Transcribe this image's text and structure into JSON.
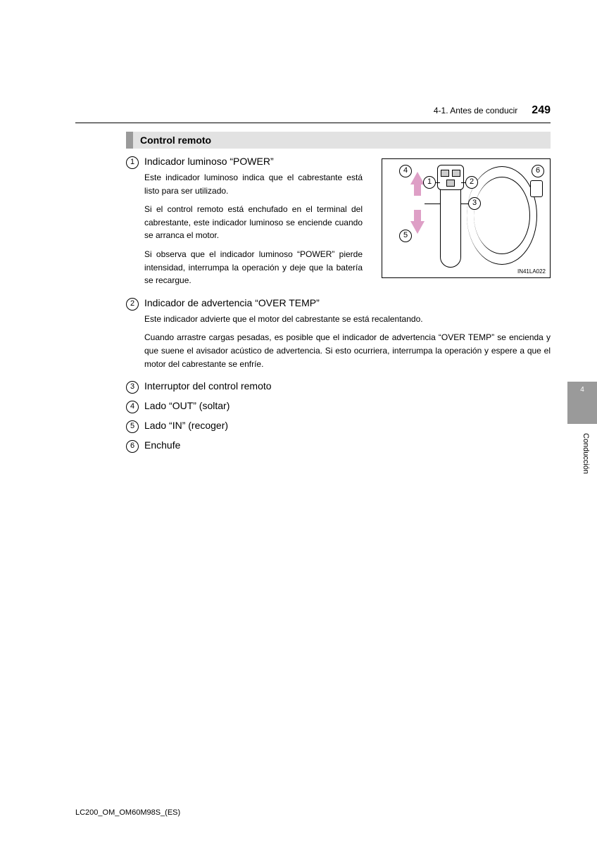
{
  "header": {
    "section": "4-1. Antes de conducir",
    "page_number": "249"
  },
  "band": {
    "title": "Control remoto"
  },
  "diagram": {
    "id_label": "IN41LA022",
    "callouts": [
      "1",
      "2",
      "3",
      "4",
      "5",
      "6"
    ],
    "arrow_color": "#de9fc6"
  },
  "items": [
    {
      "num": "1",
      "title": "Indicador luminoso “POWER”",
      "narrow": true,
      "paragraphs": [
        "Este indicador luminoso indica que el cabrestante está listo para ser utilizado.",
        "Si el control remoto está enchufado en el terminal del cabrestante, este indicador luminoso se enciende cuando se arranca el motor.",
        "Si observa que el indicador luminoso “POWER” pierde intensidad, interrumpa la operación y deje que la batería se recargue."
      ]
    },
    {
      "num": "2",
      "title": "Indicador de advertencia “OVER TEMP”",
      "narrow": false,
      "paragraphs": [
        "Este indicador advierte que el motor del cabrestante se está recalentando.",
        "Cuando arrastre cargas pesadas, es posible que el indicador de advertencia “OVER TEMP” se encienda y que suene el avisador acústico de advertencia.\nSi esto ocurriera, interrumpa la operación y espere a que el motor del cabrestante se enfríe."
      ]
    },
    {
      "num": "3",
      "title": "Interruptor del control remoto",
      "narrow": false,
      "paragraphs": []
    },
    {
      "num": "4",
      "title": "Lado “OUT” (soltar)",
      "narrow": false,
      "paragraphs": []
    },
    {
      "num": "5",
      "title": "Lado “IN” (recoger)",
      "narrow": false,
      "paragraphs": []
    },
    {
      "num": "6",
      "title": "Enchufe",
      "narrow": false,
      "paragraphs": []
    }
  ],
  "tab": {
    "number": "4",
    "label": "Conducción"
  },
  "footer": "LC200_OM_OM60M98S_(ES)"
}
